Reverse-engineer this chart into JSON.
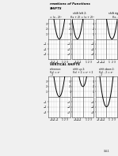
{
  "title": "rmations of Functions",
  "section1_title": "SHIFTS",
  "shift_left_label": "shift left 2:",
  "shift_right_label": "shift right",
  "formula_ref": "= (x - 2)²",
  "formula_left": "f(x + 2) = (x + 2)²",
  "formula_right": "f(x - 2)",
  "section2_title": "VERTICAL SHIFTS",
  "ref_label": "reference:",
  "shift_up_label": "shift up 2:",
  "shift_down_label": "shift down 2:",
  "ref_formula": "f(x) = x²",
  "shift_up_formula": "f(x) + 2 = x² + 2",
  "shift_down_formula": "f(x) - 2 = x²",
  "ref_sub": "- 2",
  "page_num": "3.4.1",
  "bg_color": "#f0f0f0",
  "white": "#ffffff",
  "text_color": "#000000",
  "grid_color": "#bbbbbb",
  "curve_color": "#000000",
  "axis_color": "#666666",
  "xlim": [
    -4,
    4
  ],
  "ylim": [
    -4,
    4
  ],
  "x_ticks": [
    -3,
    -2,
    -1,
    1,
    2,
    3
  ],
  "y_ticks": [
    -3,
    -2,
    -1,
    1,
    2,
    3
  ]
}
